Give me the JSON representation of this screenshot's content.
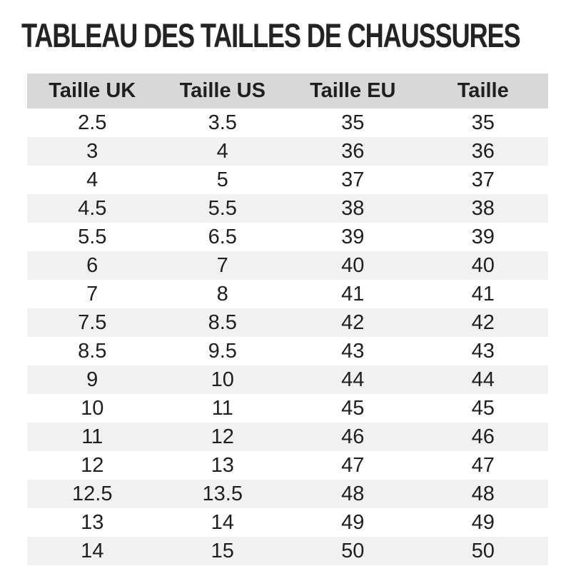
{
  "title": "TABLEAU DES TAILLES DE CHAUSSURES",
  "table": {
    "headers": [
      "Taille UK",
      "Taille US",
      "Taille EU",
      "Taille"
    ],
    "rows": [
      [
        "2.5",
        "3.5",
        "35",
        "35"
      ],
      [
        "3",
        "4",
        "36",
        "36"
      ],
      [
        "4",
        "5",
        "37",
        "37"
      ],
      [
        "4.5",
        "5.5",
        "38",
        "38"
      ],
      [
        "5.5",
        "6.5",
        "39",
        "39"
      ],
      [
        "6",
        "7",
        "40",
        "40"
      ],
      [
        "7",
        "8",
        "41",
        "41"
      ],
      [
        "7.5",
        "8.5",
        "42",
        "42"
      ],
      [
        "8.5",
        "9.5",
        "43",
        "43"
      ],
      [
        "9",
        "10",
        "44",
        "44"
      ],
      [
        "10",
        "11",
        "45",
        "45"
      ],
      [
        "11",
        "12",
        "46",
        "46"
      ],
      [
        "12",
        "13",
        "47",
        "47"
      ],
      [
        "12.5",
        "13.5",
        "48",
        "48"
      ],
      [
        "13",
        "14",
        "49",
        "49"
      ],
      [
        "14",
        "15",
        "50",
        "50"
      ]
    ],
    "colors": {
      "header_bg": "#d8d8d8",
      "row_alt_bg": "#f1f1f1",
      "text": "#1f1f1f",
      "title": "#232323"
    }
  }
}
